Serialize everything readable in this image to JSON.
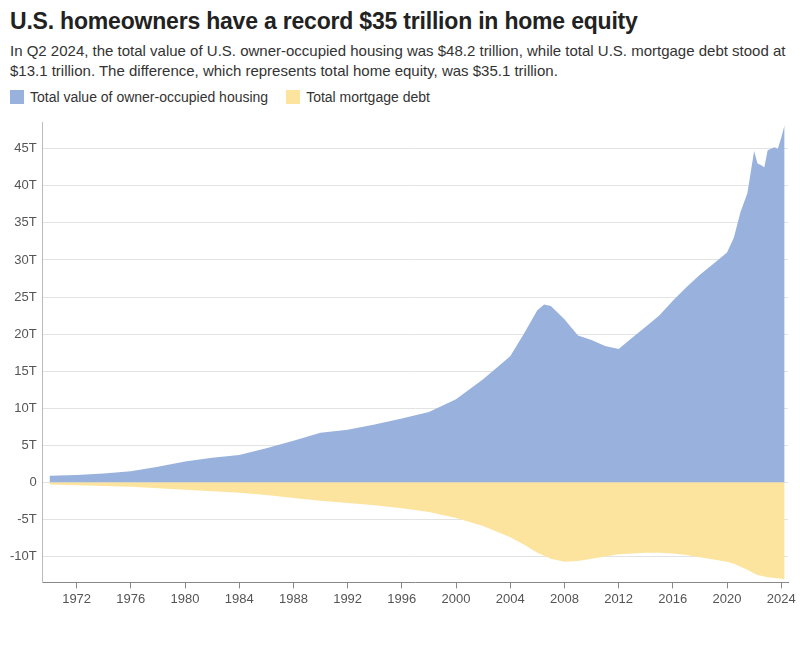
{
  "chart_data": {
    "type": "area",
    "title": "U.S. homeowners have a record $35 trillion in home equity",
    "subtitle": "In Q2 2024, the total value of U.S. owner-occupied housing was $48.2 trillion, while total U.S. mortgage debt stood at $13.1 trillion. The difference, which represents total home equity, was $35.1 trillion.",
    "legend": "top-left",
    "grid": true,
    "x": [
      1970,
      1972,
      1974,
      1976,
      1978,
      1980,
      1982,
      1984,
      1986,
      1988,
      1990,
      1992,
      1994,
      1996,
      1998,
      2000,
      2002,
      2004,
      2005,
      2006,
      2006.5,
      2007,
      2008,
      2009,
      2010,
      2011,
      2012,
      2013,
      2014,
      2015,
      2016,
      2017,
      2018,
      2019,
      2020,
      2020.5,
      2021,
      2021.5,
      2022,
      2022.25,
      2022.5,
      2022.75,
      2023,
      2023.5,
      2023.75,
      2024,
      2024.25
    ],
    "series": [
      {
        "name": "Total value of owner-occupied housing",
        "color": "#98b2dd",
        "values": [
          0.9,
          1.0,
          1.2,
          1.5,
          2.1,
          2.8,
          3.3,
          3.7,
          4.6,
          5.6,
          6.7,
          7.1,
          7.8,
          8.6,
          9.5,
          11.2,
          13.9,
          17.0,
          20.0,
          23.2,
          24.0,
          23.8,
          22.0,
          19.8,
          19.2,
          18.4,
          18.0,
          19.5,
          21.0,
          22.5,
          24.5,
          26.3,
          28.0,
          29.5,
          31.0,
          33.0,
          36.5,
          39.0,
          44.7,
          43.0,
          42.8,
          42.5,
          44.8,
          45.2,
          45.0,
          46.5,
          48.2
        ]
      },
      {
        "name": "Total mortgage debt",
        "color": "#fde49e",
        "values": [
          -0.3,
          -0.4,
          -0.5,
          -0.6,
          -0.8,
          -1.0,
          -1.2,
          -1.4,
          -1.7,
          -2.1,
          -2.5,
          -2.8,
          -3.1,
          -3.5,
          -4.0,
          -4.8,
          -5.9,
          -7.4,
          -8.4,
          -9.5,
          -9.9,
          -10.3,
          -10.7,
          -10.6,
          -10.3,
          -10.0,
          -9.7,
          -9.6,
          -9.5,
          -9.5,
          -9.6,
          -9.8,
          -10.1,
          -10.4,
          -10.7,
          -11.0,
          -11.4,
          -11.8,
          -12.3,
          -12.5,
          -12.6,
          -12.7,
          -12.8,
          -12.9,
          -12.95,
          -13.0,
          -13.1
        ]
      }
    ],
    "xlim": [
      1969.5,
      2024.5
    ],
    "xticks": [
      1972,
      1976,
      1980,
      1984,
      1988,
      1992,
      1996,
      2000,
      2004,
      2008,
      2012,
      2016,
      2020,
      2024
    ],
    "ylim": [
      -13.5,
      48.5
    ],
    "yticks": [
      {
        "value": -10,
        "label": "-10T"
      },
      {
        "value": -5,
        "label": "-5T"
      },
      0,
      {
        "value": 5,
        "label": "5T"
      },
      {
        "value": 10,
        "label": "10T"
      },
      {
        "value": 15,
        "label": "15T"
      },
      {
        "value": 20,
        "label": "20T"
      },
      {
        "value": 25,
        "label": "25T"
      },
      {
        "value": 30,
        "label": "30T"
      },
      {
        "value": 35,
        "label": "35T"
      },
      {
        "value": 40,
        "label": "40T"
      },
      {
        "value": 45,
        "label": "45T"
      }
    ]
  }
}
